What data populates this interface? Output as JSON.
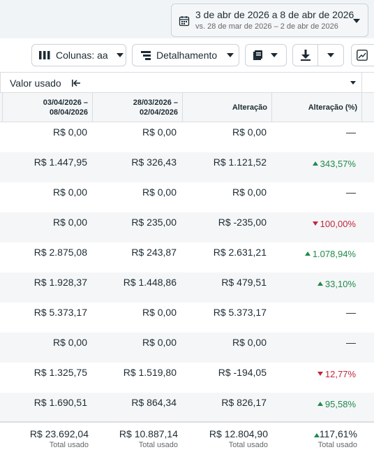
{
  "date_range": {
    "main": "3 de abr de 2026 a 8 de abr de 2026",
    "compare": "vs. 28 de mar de 2026 – 2 de abr de 2026"
  },
  "toolbar": {
    "columns_label": "Colunas: aa",
    "breakdown_label": "Detalhamento"
  },
  "group": {
    "title": "Valor usado"
  },
  "columns": [
    "03/04/2026 –\n08/04/2026",
    "28/03/2026 –\n02/04/2026",
    "Alteração",
    "Alteração (%)"
  ],
  "rows": [
    {
      "current": "R$ 0,00",
      "previous": "R$ 0,00",
      "change": "R$ 0,00",
      "pct": "—",
      "dir": "none"
    },
    {
      "current": "R$ 1.447,95",
      "previous": "R$ 326,43",
      "change": "R$ 1.121,52",
      "pct": "343,57%",
      "dir": "up"
    },
    {
      "current": "R$ 0,00",
      "previous": "R$ 0,00",
      "change": "R$ 0,00",
      "pct": "—",
      "dir": "none"
    },
    {
      "current": "R$ 0,00",
      "previous": "R$ 235,00",
      "change": "R$ -235,00",
      "pct": "100,00%",
      "dir": "down"
    },
    {
      "current": "R$ 2.875,08",
      "previous": "R$ 243,87",
      "change": "R$ 2.631,21",
      "pct": "1.078,94%",
      "dir": "up"
    },
    {
      "current": "R$ 1.928,37",
      "previous": "R$ 1.448,86",
      "change": "R$ 479,51",
      "pct": "33,10%",
      "dir": "up"
    },
    {
      "current": "R$ 5.373,17",
      "previous": "R$ 0,00",
      "change": "R$ 5.373,17",
      "pct": "—",
      "dir": "none"
    },
    {
      "current": "R$ 0,00",
      "previous": "R$ 0,00",
      "change": "R$ 0,00",
      "pct": "—",
      "dir": "none"
    },
    {
      "current": "R$ 1.325,75",
      "previous": "R$ 1.519,80",
      "change": "R$ -194,05",
      "pct": "12,77%",
      "dir": "down"
    },
    {
      "current": "R$ 1.690,51",
      "previous": "R$ 864,34",
      "change": "R$ 826,17",
      "pct": "95,58%",
      "dir": "up"
    }
  ],
  "totals": {
    "current": "R$ 23.692,04",
    "previous": "R$ 10.887,14",
    "change": "R$ 12.804,90",
    "pct": "117,61%",
    "label": "Total usado"
  },
  "icons": {
    "calendar": "calendar-icon",
    "columns": "columns-icon",
    "breakdown": "breakdown-icon",
    "reports": "reports-icon",
    "export": "download-icon",
    "chart": "chart-icon",
    "collapse": "collapse-left-icon"
  },
  "colors": {
    "up": "#1f8a4c",
    "down": "#c0273b"
  }
}
